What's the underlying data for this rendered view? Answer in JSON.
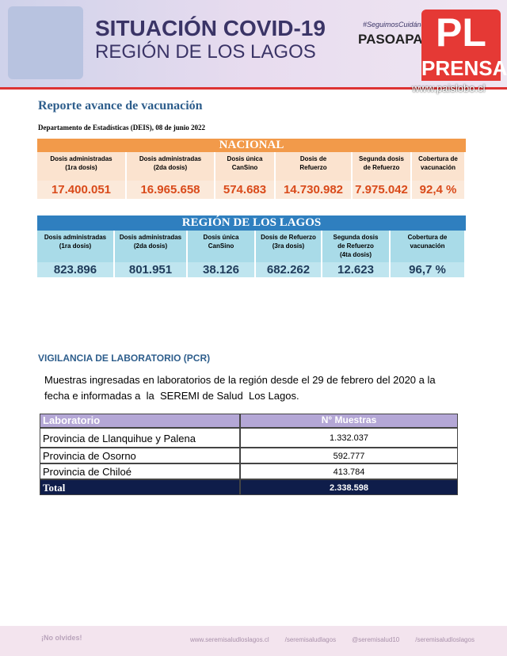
{
  "header": {
    "title": "SITUACIÓN COVID-19",
    "subtitle": "REGIÓN DE LOS LAGOS",
    "hashtag": "#SeguimosCuidándonos",
    "brand": "PASOAPASO"
  },
  "watermark": {
    "logo": "PL",
    "name": "PRENSA",
    "url": "www.paislobo.cl"
  },
  "report": {
    "title": "Reporte avance de vacunación",
    "source": "Departamento de Estadísticas (DEIS), 08 de junio 2022"
  },
  "nacional": {
    "title": "NACIONAL",
    "columns": [
      {
        "label": "Dosis administradas\n(1ra dosis)",
        "value": "17.400.051"
      },
      {
        "label": "Dosis administradas\n(2da dosis)",
        "value": "16.965.658"
      },
      {
        "label": "Dosis única\nCanSino",
        "value": "574.683"
      },
      {
        "label": "Dosis de\nRefuerzo",
        "value": "14.730.982"
      },
      {
        "label": "Segunda dosis\nde Refuerzo",
        "value": "7.975.042"
      },
      {
        "label": "Cobertura de\nvacunación",
        "value": "92,4 %"
      }
    ]
  },
  "regional": {
    "title": "REGIÓN DE LOS LAGOS",
    "columns": [
      {
        "label": "Dosis administradas\n(1ra dosis)",
        "value": "823.896"
      },
      {
        "label": "Dosis administradas\n(2da dosis)",
        "value": "801.951"
      },
      {
        "label": "Dosis única\nCanSino",
        "value": "38.126"
      },
      {
        "label": "Dosis de Refuerzo\n(3ra dosis)",
        "value": "682.262"
      },
      {
        "label": "Segunda dosis\nde Refuerzo\n(4ta dosis)",
        "value": "12.623"
      },
      {
        "label": "Cobertura de\nvacunación",
        "value": "96,7 %"
      }
    ]
  },
  "lab": {
    "title": "VIGILANCIA DE LABORATORIO (PCR)",
    "description": "Muestras ingresadas en laboratorios de la región desde el 29 de febrero del 2020 a la\nfecha e informadas a  la  SEREMI de Salud  Los Lagos.",
    "table": {
      "headers": [
        "Laboratorio",
        "N° Muestras"
      ],
      "rows": [
        [
          "Provincia de  Llanquihue  y  Palena",
          "1.332.037"
        ],
        [
          "Provincia de Osorno",
          "592.777"
        ],
        [
          "Provincia de Chiloé",
          "413.784"
        ],
        [
          "Total",
          "2.338.598"
        ]
      ]
    }
  },
  "footer": {
    "reminder": "¡No olvides!",
    "links": [
      "www.seremisaludloslagos.cl",
      "/seremisaludlagos",
      "@seremisalud10",
      "/seremisaludloslagos"
    ]
  }
}
